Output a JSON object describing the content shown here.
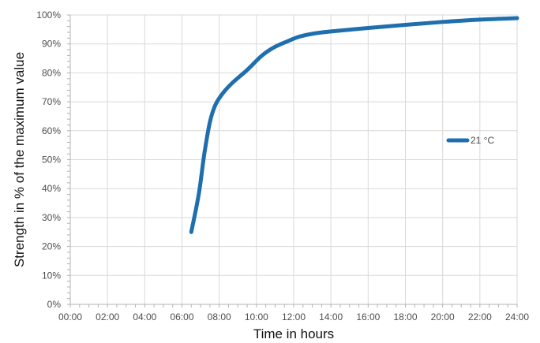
{
  "chart_data": {
    "type": "line",
    "title": "",
    "xlabel": "Time in hours",
    "ylabel": "Strength in % of the maximum value",
    "x_ticks": [
      "00:00",
      "02:00",
      "04:00",
      "06:00",
      "08:00",
      "10:00",
      "12:00",
      "14:00",
      "16:00",
      "18:00",
      "20:00",
      "22:00",
      "24:00"
    ],
    "y_ticks": [
      "0%",
      "10%",
      "20%",
      "30%",
      "40%",
      "50%",
      "60%",
      "70%",
      "80%",
      "90%",
      "100%"
    ],
    "xlim": [
      0,
      24
    ],
    "ylim": [
      0,
      100
    ],
    "grid": true,
    "legend_position": "right",
    "series": [
      {
        "name": "21 °C",
        "color": "#1f6fae",
        "x": [
          6.5,
          6.9,
          7.2,
          7.5,
          7.8,
          8.2,
          8.7,
          9.5,
          10.3,
          11.0,
          11.7,
          12.3,
          13.0,
          14.0,
          16.0,
          18.0,
          20.0,
          22.0,
          24.0
        ],
        "y": [
          25,
          38,
          52,
          63,
          69,
          73,
          76.5,
          81,
          86,
          89,
          91,
          92.5,
          93.5,
          94.3,
          95.5,
          96.6,
          97.6,
          98.4,
          98.9
        ]
      }
    ]
  }
}
